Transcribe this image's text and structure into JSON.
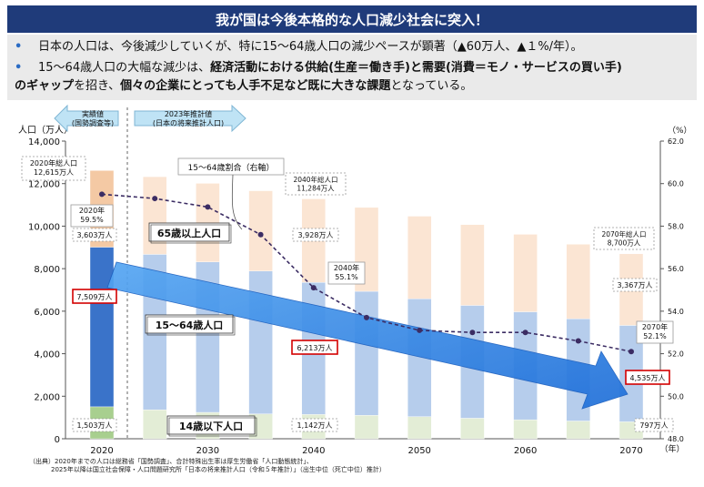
{
  "header": {
    "title": "我が国は今後本格的な人口減少社会に突入！"
  },
  "bullets": {
    "b1": "日本の人口は、今後減少していくが、特に15～64歳人口の減少ペースが顕著（▲60万人、▲１%/年）。",
    "b2_a": "15～64歳人口の大幅な減少は、",
    "b2_b": "経済活動における供給(生産＝働き手)と需要(消費＝モノ・サービスの買い手)",
    "b2_c": "のギャップ",
    "b2_d": "を招き、",
    "b2_e": "個々の企業にとっても人手不足など既に大きな課題",
    "b2_f": "となっている。"
  },
  "chart_data": {
    "type": "bar",
    "stacked": true,
    "title": "",
    "ylabel": "人口（万人）",
    "y2label": "（%）",
    "xlabel": "（年）",
    "ylim": [
      0,
      14000
    ],
    "y2lim": [
      48,
      62
    ],
    "yticks": [
      "0",
      "2,000",
      "4,000",
      "6,000",
      "8,000",
      "10,000",
      "12,000",
      "14,000"
    ],
    "y2ticks": [
      "48.0",
      "50.0",
      "52.0",
      "54.0",
      "56.0",
      "58.0",
      "60.0",
      "62.0"
    ],
    "xticks": [
      "2020",
      "2030",
      "2040",
      "2050",
      "2060",
      "2070"
    ],
    "years": [
      2020,
      2025,
      2030,
      2035,
      2040,
      2045,
      2050,
      2055,
      2060,
      2065,
      2070
    ],
    "series": [
      {
        "name": "14歳以下人口",
        "values": [
          1503,
          1363,
          1240,
          1169,
          1142,
          1103,
          1041,
          966,
          893,
          835,
          797
        ]
      },
      {
        "name": "15～64歳人口",
        "values": [
          7509,
          7310,
          7076,
          6722,
          6213,
          5832,
          5540,
          5307,
          5078,
          4809,
          4535
        ]
      },
      {
        "name": "65歳以上人口",
        "values": [
          3603,
          3653,
          3696,
          3773,
          3928,
          3945,
          3888,
          3798,
          3644,
          3504,
          3367
        ]
      }
    ],
    "ratio_series": {
      "name": "15～64歳割合（右軸）",
      "values": [
        59.5,
        59.3,
        58.9,
        57.6,
        55.1,
        53.7,
        53.1,
        53.0,
        53.0,
        52.6,
        52.1
      ]
    },
    "labels": {
      "actual": "実績値\n(国勢調査等)",
      "projection": "2023年推計値\n(日本の将来推計人口)",
      "ratio_name": "15～64歳割合（右軸）",
      "total_2020": "2020年総人口\n12,615万人",
      "total_2040": "2040年総人口\n11,284万人",
      "total_2070": "2070年総人口\n8,700万人",
      "r_2020": "2020年\n59.5%",
      "r_2040": "2040年\n55.1%",
      "r_2070": "2070年\n52.1%",
      "old_2020": "3,603万人",
      "old_2040": "3,928万人",
      "old_2070": "3,367万人",
      "work_2020": "7,509万人",
      "work_2040": "6,213万人",
      "work_2070": "4,535万人",
      "child_2020": "1,503万人",
      "child_2040": "1,142万人",
      "child_2070": "797万人",
      "legend_old": "65歳以上人口",
      "legend_work": "15～64歳人口",
      "legend_child": "14歳以下人口"
    }
  },
  "source": {
    "line1": "（出典）2020年までの人口は総務省「国勢調査」、合計特殊出生率は厚生労働省「人口動態統計」、",
    "line2": "2025年以降は国立社会保障・人口問題研究所「日本の将来推計人口（令和５年推計）」（出生中位（死亡中位）推計）"
  },
  "colors": {
    "banner": "#1f3b7a",
    "child_actual": "#a8cf8f",
    "work_actual": "#3a73c9",
    "old_actual": "#f4c9a4",
    "child_proj": "#e3edd6",
    "work_proj": "#b6cdec",
    "old_proj": "#fbe5d3",
    "ratio_line": "#3b2c63",
    "arrow": "#2f86e8"
  }
}
